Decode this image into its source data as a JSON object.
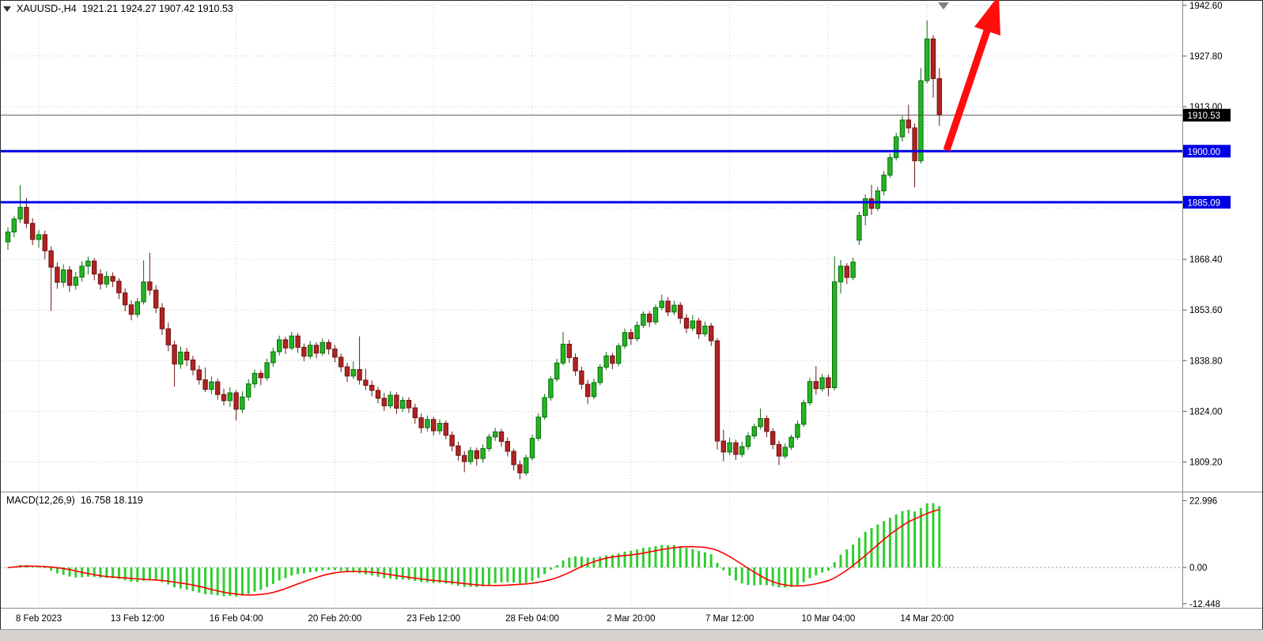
{
  "header": {
    "symbol_period": "XAUUSD-,H4",
    "ohlc": "1921.21 1924.27 1907.42 1910.53"
  },
  "macd_panel": {
    "name": "MACD(12,26,9)",
    "values": "16.758 18.119"
  },
  "colors": {
    "background": "#FFFFFF",
    "grid": "#C9C9C9",
    "text": "#000000",
    "bull_fill": "#23B523",
    "bull_stroke": "#0A6E0A",
    "bear_fill": "#B22222",
    "bear_stroke": "#6E1414",
    "macd_histogram": "#32CD32",
    "macd_signal": "#FF0000",
    "level_line": "#0000E6",
    "arrow": "#FF0D0D",
    "current_badge_bg": "#000000",
    "separator": "#8C8C8C"
  },
  "chart_data": {
    "type": "candlestick",
    "symbol": "XAUUSD-",
    "timeframe": "H4",
    "title": "XAUUSD-,H4",
    "ohlc_current": {
      "open": 1921.21,
      "high": 1924.27,
      "low": 1907.42,
      "close": 1910.53
    },
    "y_axis": {
      "range": [
        1801.0,
        1944.5
      ],
      "labels": [
        {
          "text": "1942.60",
          "price": 1942.6
        },
        {
          "text": "1927.80",
          "price": 1927.8
        },
        {
          "text": "1913.00",
          "price": 1913.0
        },
        {
          "text": "1868.40",
          "price": 1868.4
        },
        {
          "text": "1853.60",
          "price": 1853.6
        },
        {
          "text": "1838.80",
          "price": 1838.8
        },
        {
          "text": "1824.00",
          "price": 1824.0
        },
        {
          "text": "1809.20",
          "price": 1809.2
        }
      ],
      "gridlines": [
        1942.6,
        1927.8,
        1913.0,
        1898.2,
        1883.4,
        1868.4,
        1853.6,
        1838.8,
        1824.0,
        1809.2
      ]
    },
    "x_axis": {
      "start": "8 Feb 2023",
      "interval_hours": 4,
      "candle_count": 152,
      "labels": [
        {
          "text": "8 Feb 2023",
          "index": 5
        },
        {
          "text": "13 Feb 12:00",
          "index": 21
        },
        {
          "text": "16 Feb 04:00",
          "index": 37
        },
        {
          "text": "20 Feb 20:00",
          "index": 53
        },
        {
          "text": "23 Feb 12:00",
          "index": 69
        },
        {
          "text": "28 Feb 04:00",
          "index": 85
        },
        {
          "text": "2 Mar 20:00",
          "index": 101
        },
        {
          "text": "7 Mar 12:00",
          "index": 117
        },
        {
          "text": "10 Mar 04:00",
          "index": 133
        },
        {
          "text": "14 Mar 20:00",
          "index": 149
        }
      ]
    },
    "candles": [
      [
        1873.5,
        1877.8,
        1871.2,
        1876.4
      ],
      [
        1876.4,
        1881.0,
        1874.9,
        1880.2
      ],
      [
        1880.2,
        1890.1,
        1879.0,
        1883.6
      ],
      [
        1883.6,
        1886.3,
        1877.5,
        1878.9
      ],
      [
        1878.9,
        1880.4,
        1872.6,
        1874.2
      ],
      [
        1874.2,
        1877.0,
        1871.8,
        1875.6
      ],
      [
        1875.6,
        1876.8,
        1868.4,
        1870.9
      ],
      [
        1870.9,
        1872.2,
        1853.3,
        1866.1
      ],
      [
        1866.1,
        1867.5,
        1859.8,
        1861.7
      ],
      [
        1861.7,
        1866.9,
        1860.2,
        1865.3
      ],
      [
        1865.3,
        1866.4,
        1858.9,
        1860.8
      ],
      [
        1860.8,
        1864.7,
        1859.5,
        1863.2
      ],
      [
        1863.2,
        1867.8,
        1861.9,
        1866.4
      ],
      [
        1866.4,
        1869.2,
        1864.0,
        1867.9
      ],
      [
        1867.9,
        1868.8,
        1862.3,
        1864.1
      ],
      [
        1864.1,
        1865.5,
        1859.6,
        1861.2
      ],
      [
        1861.2,
        1864.9,
        1860.1,
        1863.4
      ],
      [
        1863.4,
        1864.6,
        1860.3,
        1862.0
      ],
      [
        1862.0,
        1862.9,
        1856.8,
        1858.6
      ],
      [
        1858.6,
        1859.9,
        1853.2,
        1855.1
      ],
      [
        1855.1,
        1856.4,
        1850.6,
        1852.3
      ],
      [
        1852.3,
        1857.2,
        1851.4,
        1856.0
      ],
      [
        1856.0,
        1868.1,
        1855.2,
        1861.8
      ],
      [
        1861.8,
        1870.3,
        1857.9,
        1859.4
      ],
      [
        1859.4,
        1860.8,
        1852.7,
        1854.2
      ],
      [
        1854.2,
        1855.6,
        1846.3,
        1848.1
      ],
      [
        1848.1,
        1849.9,
        1841.5,
        1843.4
      ],
      [
        1843.4,
        1844.6,
        1831.2,
        1837.8
      ],
      [
        1837.8,
        1842.9,
        1836.4,
        1841.3
      ],
      [
        1841.3,
        1842.5,
        1837.2,
        1839.0
      ],
      [
        1839.0,
        1840.2,
        1834.5,
        1836.1
      ],
      [
        1836.1,
        1837.4,
        1831.8,
        1833.2
      ],
      [
        1833.2,
        1836.8,
        1829.6,
        1830.4
      ],
      [
        1830.4,
        1834.2,
        1829.0,
        1832.6
      ],
      [
        1832.6,
        1833.5,
        1827.4,
        1828.9
      ],
      [
        1828.9,
        1830.6,
        1825.7,
        1827.1
      ],
      [
        1827.1,
        1831.0,
        1825.3,
        1829.4
      ],
      [
        1829.4,
        1830.2,
        1821.3,
        1824.6
      ],
      [
        1824.6,
        1829.8,
        1823.5,
        1828.2
      ],
      [
        1828.2,
        1833.4,
        1827.1,
        1832.0
      ],
      [
        1832.0,
        1836.2,
        1830.8,
        1835.1
      ],
      [
        1835.1,
        1836.0,
        1831.6,
        1833.8
      ],
      [
        1833.8,
        1839.4,
        1832.9,
        1838.2
      ],
      [
        1838.2,
        1842.6,
        1837.0,
        1841.4
      ],
      [
        1841.4,
        1846.1,
        1840.3,
        1844.9
      ],
      [
        1844.9,
        1845.8,
        1840.7,
        1842.5
      ],
      [
        1842.5,
        1847.2,
        1841.8,
        1846.0
      ],
      [
        1846.0,
        1846.9,
        1841.1,
        1842.7
      ],
      [
        1842.7,
        1843.8,
        1838.6,
        1840.1
      ],
      [
        1840.1,
        1844.5,
        1839.2,
        1843.3
      ],
      [
        1843.3,
        1844.2,
        1839.5,
        1841.0
      ],
      [
        1841.0,
        1845.3,
        1840.2,
        1844.1
      ],
      [
        1844.1,
        1845.0,
        1840.6,
        1842.2
      ],
      [
        1842.2,
        1843.4,
        1838.3,
        1839.8
      ],
      [
        1839.8,
        1840.9,
        1835.4,
        1837.0
      ],
      [
        1837.0,
        1838.2,
        1832.6,
        1834.3
      ],
      [
        1834.3,
        1838.6,
        1833.4,
        1836.2
      ],
      [
        1836.2,
        1845.9,
        1831.8,
        1833.1
      ],
      [
        1833.1,
        1836.4,
        1830.2,
        1831.6
      ],
      [
        1831.6,
        1833.0,
        1828.4,
        1830.1
      ],
      [
        1830.1,
        1831.2,
        1826.3,
        1827.8
      ],
      [
        1827.8,
        1829.4,
        1824.1,
        1825.6
      ],
      [
        1825.6,
        1829.9,
        1824.8,
        1828.7
      ],
      [
        1828.7,
        1829.6,
        1823.2,
        1824.9
      ],
      [
        1824.9,
        1828.3,
        1823.8,
        1827.2
      ],
      [
        1827.2,
        1828.1,
        1823.5,
        1825.0
      ],
      [
        1825.0,
        1826.2,
        1820.4,
        1822.1
      ],
      [
        1822.1,
        1823.3,
        1817.6,
        1819.2
      ],
      [
        1819.2,
        1822.8,
        1818.1,
        1821.6
      ],
      [
        1821.6,
        1822.4,
        1816.9,
        1818.3
      ],
      [
        1818.3,
        1821.7,
        1817.2,
        1820.5
      ],
      [
        1820.5,
        1821.3,
        1815.8,
        1817.0
      ],
      [
        1817.0,
        1818.1,
        1812.3,
        1813.9
      ],
      [
        1813.9,
        1815.2,
        1809.6,
        1811.1
      ],
      [
        1811.1,
        1812.4,
        1806.2,
        1809.3
      ],
      [
        1809.3,
        1813.6,
        1808.4,
        1812.5
      ],
      [
        1812.5,
        1813.4,
        1808.1,
        1810.2
      ],
      [
        1810.2,
        1814.3,
        1809.0,
        1813.1
      ],
      [
        1813.1,
        1817.4,
        1812.2,
        1816.5
      ],
      [
        1816.5,
        1819.2,
        1815.3,
        1818.0
      ],
      [
        1818.0,
        1818.9,
        1813.6,
        1815.2
      ],
      [
        1815.2,
        1816.4,
        1810.8,
        1812.3
      ],
      [
        1812.3,
        1813.1,
        1806.7,
        1808.4
      ],
      [
        1808.4,
        1809.6,
        1804.1,
        1806.0
      ],
      [
        1806.0,
        1811.3,
        1805.2,
        1810.4
      ],
      [
        1810.4,
        1817.2,
        1809.6,
        1816.1
      ],
      [
        1816.1,
        1823.4,
        1815.3,
        1822.3
      ],
      [
        1822.3,
        1829.1,
        1821.5,
        1828.0
      ],
      [
        1828.0,
        1834.2,
        1827.1,
        1833.4
      ],
      [
        1833.4,
        1839.3,
        1832.6,
        1838.1
      ],
      [
        1838.1,
        1847.2,
        1837.4,
        1843.6
      ],
      [
        1843.6,
        1844.8,
        1838.2,
        1839.7
      ],
      [
        1839.7,
        1840.9,
        1834.3,
        1835.8
      ],
      [
        1835.8,
        1837.0,
        1830.4,
        1831.9
      ],
      [
        1831.9,
        1833.2,
        1826.1,
        1828.3
      ],
      [
        1828.3,
        1833.6,
        1827.5,
        1832.4
      ],
      [
        1832.4,
        1837.8,
        1831.6,
        1836.9
      ],
      [
        1836.9,
        1841.4,
        1836.0,
        1840.2
      ],
      [
        1840.2,
        1841.1,
        1836.3,
        1838.0
      ],
      [
        1838.0,
        1843.9,
        1837.2,
        1843.1
      ],
      [
        1843.1,
        1848.2,
        1842.3,
        1847.0
      ],
      [
        1847.0,
        1848.1,
        1843.4,
        1845.2
      ],
      [
        1845.2,
        1850.3,
        1844.4,
        1849.1
      ],
      [
        1849.1,
        1853.2,
        1848.3,
        1852.4
      ],
      [
        1852.4,
        1853.3,
        1848.6,
        1850.1
      ],
      [
        1850.1,
        1855.2,
        1849.3,
        1854.3
      ],
      [
        1854.3,
        1858.1,
        1853.5,
        1856.2
      ],
      [
        1856.2,
        1857.4,
        1851.8,
        1853.0
      ],
      [
        1853.0,
        1856.3,
        1852.1,
        1855.0
      ],
      [
        1855.0,
        1855.9,
        1849.6,
        1851.2
      ],
      [
        1851.2,
        1852.4,
        1846.8,
        1848.3
      ],
      [
        1848.3,
        1852.1,
        1847.4,
        1850.4
      ],
      [
        1850.4,
        1851.3,
        1845.2,
        1846.6
      ],
      [
        1846.6,
        1850.2,
        1845.8,
        1848.9
      ],
      [
        1848.9,
        1849.8,
        1843.1,
        1844.6
      ],
      [
        1844.6,
        1845.4,
        1812.8,
        1815.3
      ],
      [
        1815.3,
        1818.6,
        1809.4,
        1812.1
      ],
      [
        1812.1,
        1816.3,
        1811.2,
        1814.8
      ],
      [
        1814.8,
        1815.7,
        1809.8,
        1811.4
      ],
      [
        1811.4,
        1815.2,
        1810.6,
        1813.7
      ],
      [
        1813.7,
        1817.9,
        1812.8,
        1816.8
      ],
      [
        1816.8,
        1820.4,
        1815.9,
        1819.5
      ],
      [
        1819.5,
        1824.8,
        1818.7,
        1821.9
      ],
      [
        1821.9,
        1822.8,
        1816.4,
        1818.1
      ],
      [
        1818.1,
        1819.0,
        1812.9,
        1814.3
      ],
      [
        1814.3,
        1815.4,
        1808.3,
        1810.9
      ],
      [
        1810.9,
        1814.6,
        1810.1,
        1813.5
      ],
      [
        1813.5,
        1817.2,
        1812.7,
        1816.4
      ],
      [
        1816.4,
        1821.3,
        1815.6,
        1820.2
      ],
      [
        1820.2,
        1827.4,
        1819.4,
        1826.5
      ],
      [
        1826.5,
        1833.8,
        1825.7,
        1832.7
      ],
      [
        1832.7,
        1837.2,
        1828.9,
        1830.6
      ],
      [
        1830.6,
        1834.9,
        1829.8,
        1833.8
      ],
      [
        1833.8,
        1834.7,
        1828.4,
        1830.9
      ],
      [
        1830.9,
        1869.3,
        1830.1,
        1861.8
      ],
      [
        1861.8,
        1868.2,
        1858.4,
        1866.4
      ],
      [
        1866.4,
        1867.3,
        1861.2,
        1863.1
      ],
      [
        1863.1,
        1868.9,
        1862.3,
        1867.6
      ],
      [
        1874.0,
        1882.3,
        1872.6,
        1881.2
      ],
      [
        1881.2,
        1887.4,
        1878.3,
        1886.1
      ],
      [
        1886.1,
        1890.2,
        1881.4,
        1883.3
      ],
      [
        1883.3,
        1889.6,
        1882.5,
        1888.4
      ],
      [
        1888.4,
        1894.2,
        1887.1,
        1893.0
      ],
      [
        1893.0,
        1899.3,
        1892.2,
        1898.1
      ],
      [
        1898.1,
        1905.4,
        1897.3,
        1904.2
      ],
      [
        1904.2,
        1910.3,
        1902.8,
        1909.1
      ],
      [
        1909.1,
        1913.6,
        1905.2,
        1906.8
      ],
      [
        1906.8,
        1908.1,
        1889.4,
        1897.2
      ],
      [
        1897.2,
        1924.3,
        1896.4,
        1920.6
      ],
      [
        1920.6,
        1938.2,
        1919.8,
        1932.8
      ],
      [
        1932.8,
        1933.9,
        1915.6,
        1921.2
      ],
      [
        1921.21,
        1924.27,
        1907.42,
        1910.53
      ]
    ],
    "macd": {
      "fast": 12,
      "slow": 26,
      "signal_period": 9,
      "current_macd": 16.758,
      "current_signal": 18.119,
      "axis": [
        {
          "text": "22.996",
          "value": 22.996
        },
        {
          "text": "0.00",
          "value": 0
        },
        {
          "text": "-12.448",
          "value": -12.448
        }
      ]
    },
    "levels": [
      {
        "price": 1900.0,
        "label": "1900.00",
        "color": "#0000E6"
      },
      {
        "price": 1885.09,
        "label": "1885.09",
        "color": "#0000E6"
      }
    ],
    "current_price": {
      "value": 1910.53,
      "label": "1910.53"
    },
    "arrow": {
      "type": "arrow-up",
      "color": "#FF0D0D"
    }
  }
}
